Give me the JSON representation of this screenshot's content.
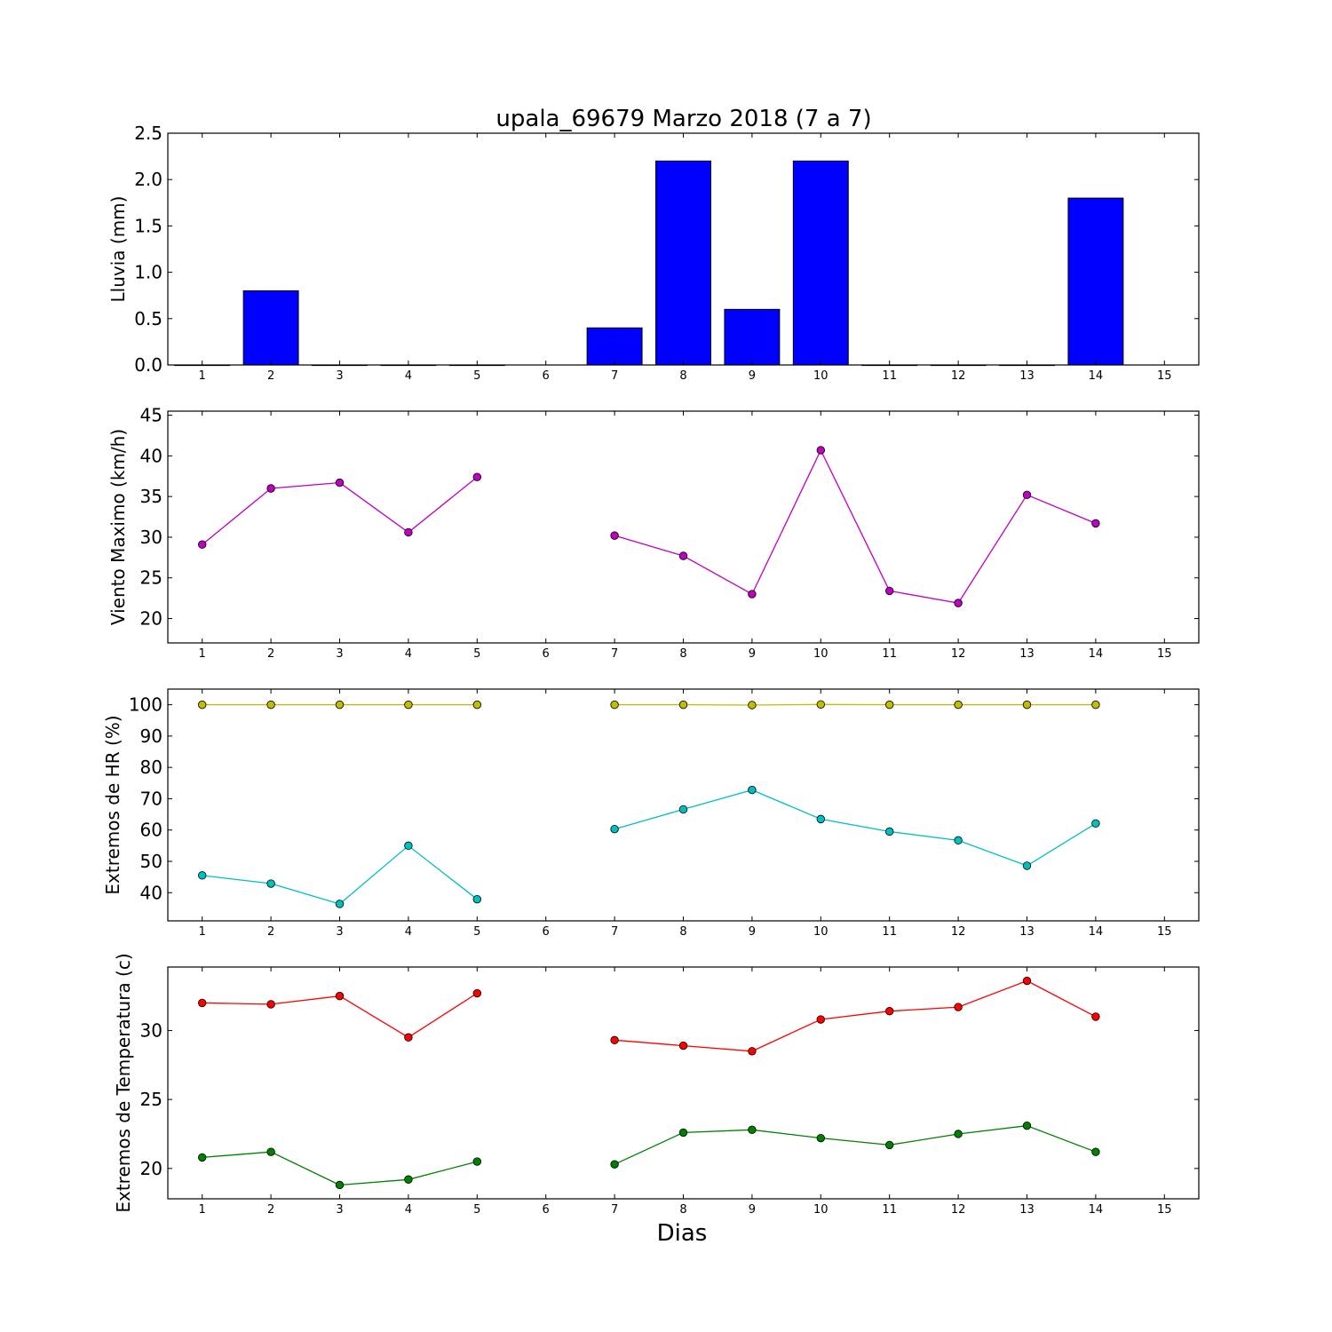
{
  "figure": {
    "title": "upala_69679 Marzo 2018  (7 a 7)",
    "xlabel": "Dias"
  },
  "chart_data": [
    {
      "type": "bar",
      "ylabel": "Lluvia (mm)",
      "x": [
        1,
        2,
        3,
        4,
        5,
        6,
        7,
        8,
        9,
        10,
        11,
        12,
        13,
        14,
        15
      ],
      "xlim": [
        0.5,
        15.5
      ],
      "xticks": [
        1,
        2,
        3,
        4,
        5,
        6,
        7,
        8,
        9,
        10,
        11,
        12,
        13,
        14,
        15
      ],
      "ylim": [
        0,
        2.5
      ],
      "yticks": [
        0,
        0.5,
        1.0,
        1.5,
        2.0,
        2.5
      ],
      "ytick_labels": [
        "0.0",
        "0.5",
        "1.0",
        "1.5",
        "2.0",
        "2.5"
      ],
      "grid": false,
      "series": [
        {
          "color": "#0000ff",
          "values": [
            0,
            0.8,
            0,
            0,
            0,
            null,
            0.4,
            2.2,
            0.6,
            2.2,
            0,
            0,
            0,
            1.8,
            null
          ]
        }
      ]
    },
    {
      "type": "line",
      "ylabel": "Viento Maximo (km/h)",
      "x": [
        1,
        2,
        3,
        4,
        5,
        6,
        7,
        8,
        9,
        10,
        11,
        12,
        13,
        14,
        15
      ],
      "xlim": [
        0.5,
        15.5
      ],
      "xticks": [
        1,
        2,
        3,
        4,
        5,
        6,
        7,
        8,
        9,
        10,
        11,
        12,
        13,
        14,
        15
      ],
      "ylim": [
        17,
        45.5
      ],
      "yticks": [
        20,
        25,
        30,
        35,
        40,
        45
      ],
      "ytick_labels": [
        "20",
        "25",
        "30",
        "35",
        "40",
        "45"
      ],
      "grid": false,
      "series": [
        {
          "color": "#bf00bf",
          "values": [
            29.1,
            36.0,
            36.7,
            30.6,
            37.4,
            null,
            30.2,
            27.7,
            23.0,
            40.7,
            23.4,
            21.9,
            35.2,
            31.7,
            null
          ]
        }
      ]
    },
    {
      "type": "line",
      "ylabel": "Extremos de HR (%)",
      "x": [
        1,
        2,
        3,
        4,
        5,
        6,
        7,
        8,
        9,
        10,
        11,
        12,
        13,
        14,
        15
      ],
      "xlim": [
        0.5,
        15.5
      ],
      "xticks": [
        1,
        2,
        3,
        4,
        5,
        6,
        7,
        8,
        9,
        10,
        11,
        12,
        13,
        14,
        15
      ],
      "ylim": [
        31,
        105
      ],
      "yticks": [
        40,
        50,
        60,
        70,
        80,
        90,
        100
      ],
      "ytick_labels": [
        "40",
        "50",
        "60",
        "70",
        "80",
        "90",
        "100"
      ],
      "grid": false,
      "series": [
        {
          "color": "#bfbf00",
          "values": [
            100,
            100,
            100,
            100,
            100,
            null,
            100,
            100,
            99.9,
            100.1,
            100,
            100,
            100,
            100,
            null
          ]
        },
        {
          "color": "#00bfbf",
          "values": [
            45.5,
            42.9,
            36.4,
            55.0,
            37.9,
            null,
            60.3,
            66.6,
            72.8,
            63.5,
            59.5,
            56.7,
            48.6,
            62.1,
            null
          ]
        }
      ]
    },
    {
      "type": "line",
      "ylabel": "Extremos de Temperatura (c)",
      "x": [
        1,
        2,
        3,
        4,
        5,
        6,
        7,
        8,
        9,
        10,
        11,
        12,
        13,
        14,
        15
      ],
      "xlim": [
        0.5,
        15.5
      ],
      "xticks": [
        1,
        2,
        3,
        4,
        5,
        6,
        7,
        8,
        9,
        10,
        11,
        12,
        13,
        14,
        15
      ],
      "ylim": [
        17.8,
        34.6
      ],
      "yticks": [
        20,
        25,
        30
      ],
      "ytick_labels": [
        "20",
        "25",
        "30"
      ],
      "grid": false,
      "series": [
        {
          "color": "#ff0000",
          "values": [
            32.0,
            31.9,
            32.5,
            29.5,
            32.7,
            null,
            29.3,
            28.9,
            28.5,
            30.8,
            31.4,
            31.7,
            33.6,
            31.0,
            null
          ]
        },
        {
          "color": "#008000",
          "values": [
            20.8,
            21.2,
            18.8,
            19.2,
            20.5,
            null,
            20.3,
            22.6,
            22.8,
            22.2,
            21.7,
            22.5,
            23.1,
            21.2,
            null
          ]
        }
      ]
    }
  ]
}
